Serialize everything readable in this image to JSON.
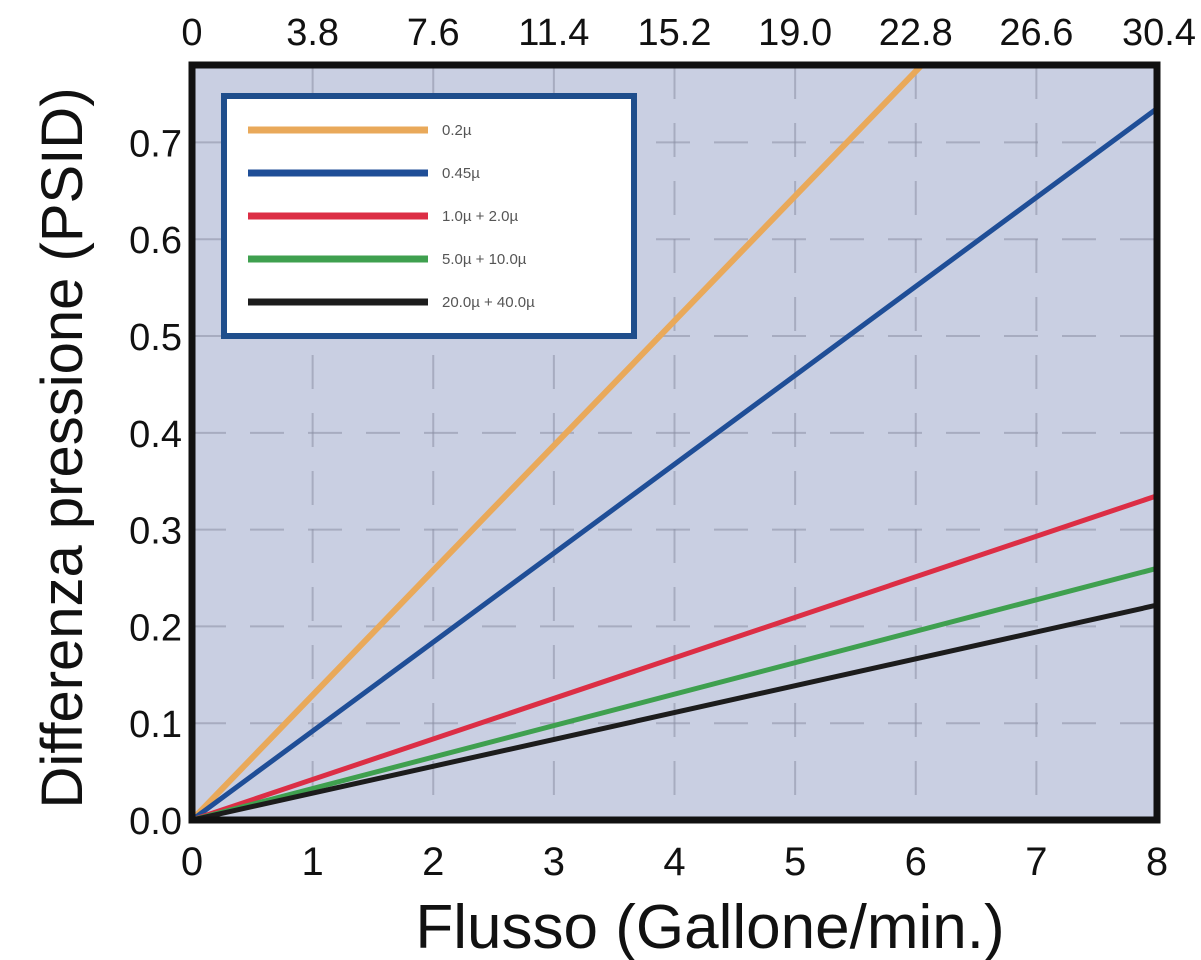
{
  "chart_data": {
    "type": "line",
    "xlabel": "Flusso (Gallone/min.)",
    "ylabel": "Differenza pressione (PSID)",
    "xlim": [
      0,
      8
    ],
    "ylim": [
      0,
      0.78
    ],
    "x_ticks": [
      "0",
      "1",
      "2",
      "3",
      "4",
      "5",
      "6",
      "7",
      "8"
    ],
    "x_ticks_top": [
      "0",
      "3.8",
      "7.6",
      "11.4",
      "15.2",
      "19.0",
      "22.8",
      "26.6",
      "30.4"
    ],
    "y_ticks": [
      "0.0",
      "0.1",
      "0.2",
      "0.3",
      "0.4",
      "0.5",
      "0.6",
      "0.7"
    ],
    "grid": true,
    "legend_position": "top-left",
    "background": "#c9cfe2",
    "series": [
      {
        "name": "0.2µ",
        "color": "#e9a95a",
        "x": [
          0,
          6.05
        ],
        "y": [
          0,
          0.78
        ]
      },
      {
        "name": "0.45µ",
        "color": "#1f4e97",
        "x": [
          0,
          8
        ],
        "y": [
          0,
          0.735
        ]
      },
      {
        "name": "1.0µ + 2.0µ",
        "color": "#dc2e45",
        "x": [
          0,
          8
        ],
        "y": [
          0,
          0.335
        ]
      },
      {
        "name": "5.0µ + 10.0µ",
        "color": "#3fa04f",
        "x": [
          0,
          8
        ],
        "y": [
          0,
          0.26
        ]
      },
      {
        "name": "20.0µ + 40.0µ",
        "color": "#1c1c1c",
        "x": [
          0,
          8
        ],
        "y": [
          0,
          0.222
        ]
      }
    ]
  }
}
